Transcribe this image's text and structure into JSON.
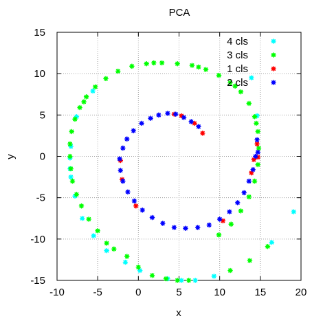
{
  "chart_data": {
    "type": "scatter",
    "title": "PCA",
    "xlabel": "x",
    "ylabel": "y",
    "xlim": [
      -10,
      20
    ],
    "ylim": [
      -15,
      15
    ],
    "xticks": [
      -10,
      -5,
      0,
      5,
      10,
      15,
      20
    ],
    "yticks": [
      -15,
      -10,
      -5,
      0,
      5,
      10,
      15
    ],
    "grid": true,
    "legend_position": "top-right",
    "marker": "*",
    "series": [
      {
        "name": "4 cls",
        "color": "#00ffff",
        "points": [
          [
            19.1,
            -6.7
          ],
          [
            16.4,
            -10.4
          ],
          [
            9.3,
            -14.5
          ],
          [
            7.0,
            -15.0
          ],
          [
            5.3,
            -15.0
          ],
          [
            3.6,
            -14.8
          ],
          [
            0.2,
            -13.8
          ],
          [
            -1.6,
            -12.8
          ],
          [
            -3.9,
            -11.4
          ],
          [
            -5.5,
            -9.6
          ],
          [
            -6.9,
            -7.5
          ],
          [
            -7.8,
            -4.8
          ],
          [
            -8.3,
            -2.5
          ],
          [
            -8.4,
            -0.2
          ],
          [
            -8.3,
            1.2
          ],
          [
            -7.6,
            4.8
          ],
          [
            -5.6,
            7.9
          ],
          [
            13.9,
            9.5
          ],
          [
            14.6,
            4.9
          ],
          [
            -8.4,
            -1.5
          ]
        ]
      },
      {
        "name": "3 cls",
        "color": "#00ff00",
        "points": [
          [
            -8.4,
            0.0
          ],
          [
            -8.4,
            1.5
          ],
          [
            -8.2,
            3.0
          ],
          [
            -7.8,
            4.5
          ],
          [
            -7.2,
            5.9
          ],
          [
            -6.4,
            7.2
          ],
          [
            -5.3,
            8.4
          ],
          [
            -4.0,
            9.4
          ],
          [
            -2.5,
            10.3
          ],
          [
            -0.8,
            10.9
          ],
          [
            1.0,
            11.2
          ],
          [
            2.9,
            11.3
          ],
          [
            4.8,
            11.2
          ],
          [
            6.6,
            11.0
          ],
          [
            8.3,
            10.5
          ],
          [
            9.9,
            9.8
          ],
          [
            11.3,
            8.9
          ],
          [
            12.6,
            7.8
          ],
          [
            13.6,
            6.4
          ],
          [
            14.3,
            4.8
          ],
          [
            14.7,
            3.0
          ],
          [
            14.8,
            1.0
          ],
          [
            14.7,
            -1.0
          ],
          [
            14.3,
            -3.0
          ],
          [
            13.6,
            -4.9
          ],
          [
            12.6,
            -6.6
          ],
          [
            11.4,
            -8.2
          ],
          [
            9.9,
            -9.5
          ],
          [
            -8.3,
            -1.5
          ],
          [
            -8.1,
            -3.0
          ],
          [
            -7.6,
            -4.6
          ],
          [
            -7.0,
            -6.0
          ],
          [
            -6.1,
            -7.6
          ],
          [
            -5.0,
            -9.0
          ],
          [
            -3.9,
            -10.5
          ],
          [
            -3.0,
            -11.2
          ],
          [
            -1.4,
            -12.1
          ],
          [
            0.0,
            -13.4
          ],
          [
            1.7,
            -14.4
          ],
          [
            3.4,
            -14.8
          ],
          [
            4.8,
            -15.0
          ],
          [
            6.2,
            -15.0
          ],
          [
            11.3,
            -13.8
          ],
          [
            13.7,
            -12.6
          ],
          [
            15.9,
            -10.9
          ],
          [
            -6.7,
            6.6
          ],
          [
            1.9,
            11.3
          ],
          [
            7.4,
            10.8
          ],
          [
            11.9,
            8.5
          ],
          [
            14.5,
            4.0
          ]
        ]
      },
      {
        "name": "1 cls",
        "color": "#ff0000",
        "points": [
          [
            7.9,
            2.8
          ],
          [
            6.9,
            4.0
          ],
          [
            5.3,
            4.9
          ],
          [
            4.4,
            5.1
          ],
          [
            -2.0,
            -2.8
          ],
          [
            -0.3,
            -6.0
          ],
          [
            10.4,
            -7.8
          ],
          [
            13.9,
            -2.0
          ],
          [
            14.2,
            -0.4
          ],
          [
            14.6,
            1.5
          ],
          [
            14.7,
            -0.1
          ],
          [
            -2.2,
            -0.5
          ]
        ]
      },
      {
        "name": "2 cls",
        "color": "#0000ff",
        "points": [
          [
            7.4,
            3.6
          ],
          [
            6.5,
            4.2
          ],
          [
            5.6,
            4.7
          ],
          [
            4.6,
            5.1
          ],
          [
            3.6,
            5.2
          ],
          [
            2.5,
            5.0
          ],
          [
            1.5,
            4.6
          ],
          [
            0.4,
            4.0
          ],
          [
            -0.6,
            3.1
          ],
          [
            -1.4,
            2.1
          ],
          [
            -1.9,
            1.0
          ],
          [
            -2.3,
            -0.3
          ],
          [
            -2.2,
            -1.7
          ],
          [
            -1.9,
            -3.0
          ],
          [
            -1.3,
            -4.3
          ],
          [
            -0.5,
            -5.4
          ],
          [
            0.5,
            -6.5
          ],
          [
            1.7,
            -7.4
          ],
          [
            3.0,
            -8.1
          ],
          [
            4.4,
            -8.6
          ],
          [
            5.8,
            -8.7
          ],
          [
            7.3,
            -8.6
          ],
          [
            8.7,
            -8.3
          ],
          [
            10.0,
            -7.6
          ],
          [
            11.2,
            -6.7
          ],
          [
            12.2,
            -5.6
          ],
          [
            13.0,
            -4.4
          ],
          [
            13.6,
            -3.0
          ],
          [
            14.1,
            -1.6
          ],
          [
            14.4,
            0.0
          ],
          [
            14.6,
            2.0
          ],
          [
            14.7,
            0.5
          ]
        ]
      }
    ]
  }
}
